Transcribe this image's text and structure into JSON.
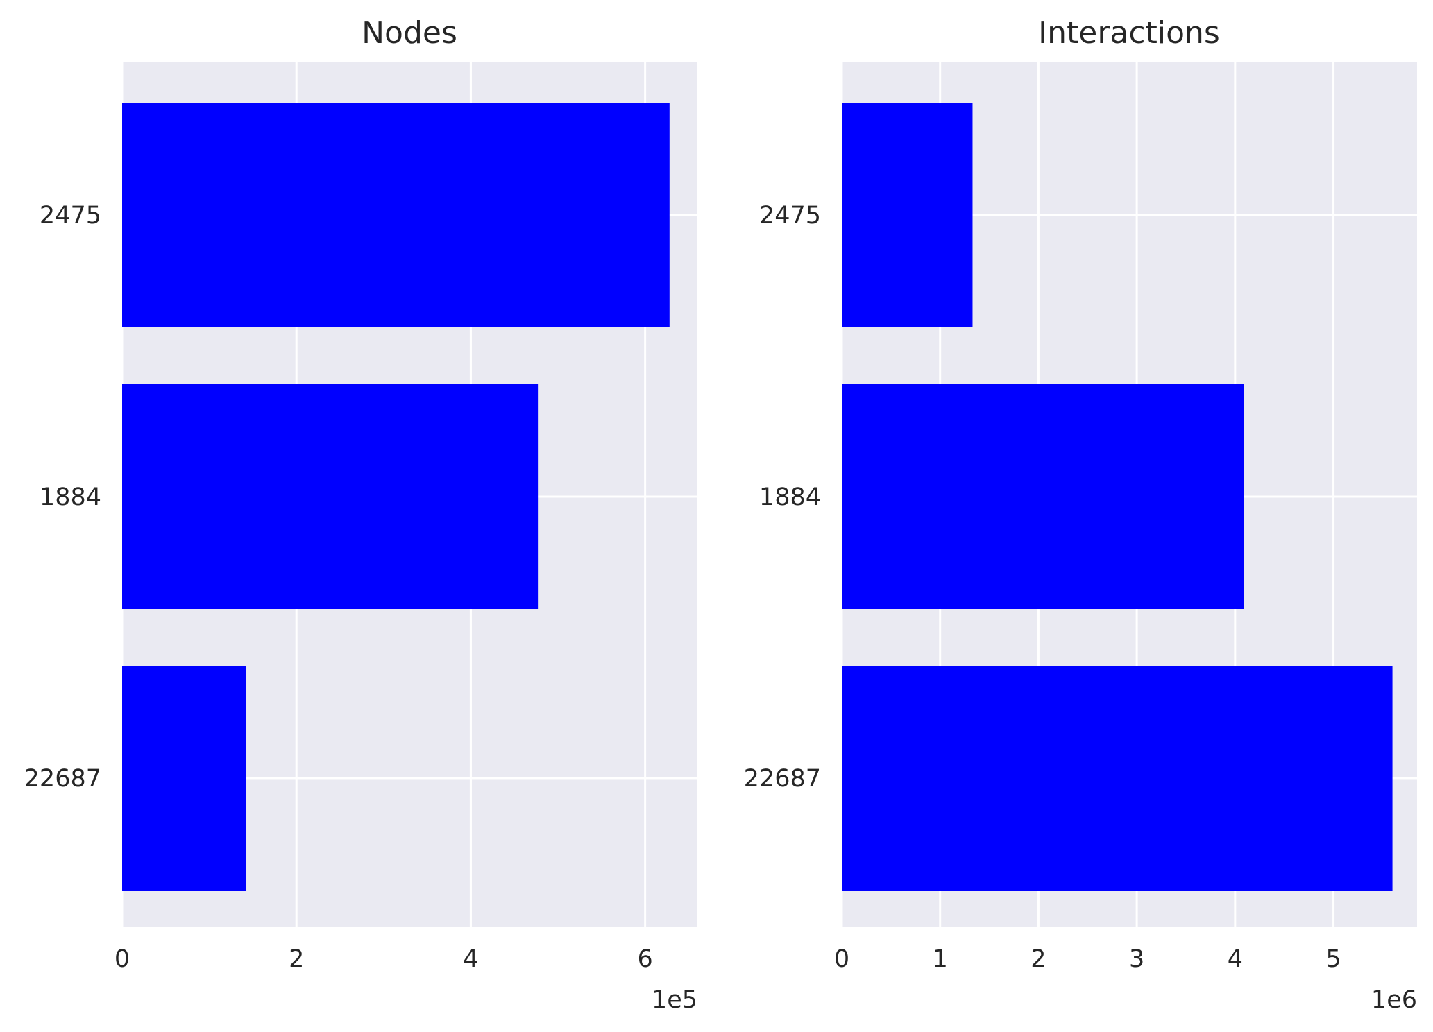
{
  "chart_data": [
    {
      "type": "bar",
      "orientation": "horizontal",
      "title": "Nodes",
      "categories": [
        "2475",
        "1884",
        "22687"
      ],
      "values": [
        628000,
        477000,
        142000
      ],
      "xlim": [
        0,
        660000
      ],
      "xticks": [
        0,
        2,
        4,
        6
      ],
      "xtick_labels": [
        "0",
        "2",
        "4",
        "6"
      ],
      "x_scale_label": "1e5",
      "x_scale": 100000,
      "grid": true,
      "bar_color": "#0000ff",
      "background_color": "#eaeaf2"
    },
    {
      "type": "bar",
      "orientation": "horizontal",
      "title": "Interactions",
      "categories": [
        "2475",
        "1884",
        "22687"
      ],
      "values": [
        1330000,
        4090000,
        5600000
      ],
      "xlim": [
        0,
        5850000
      ],
      "xticks": [
        0,
        1,
        2,
        3,
        4,
        5
      ],
      "xtick_labels": [
        "0",
        "1",
        "2",
        "3",
        "4",
        "5"
      ],
      "x_scale_label": "1e6",
      "x_scale": 1000000,
      "grid": true,
      "bar_color": "#0000ff",
      "background_color": "#eaeaf2"
    }
  ]
}
